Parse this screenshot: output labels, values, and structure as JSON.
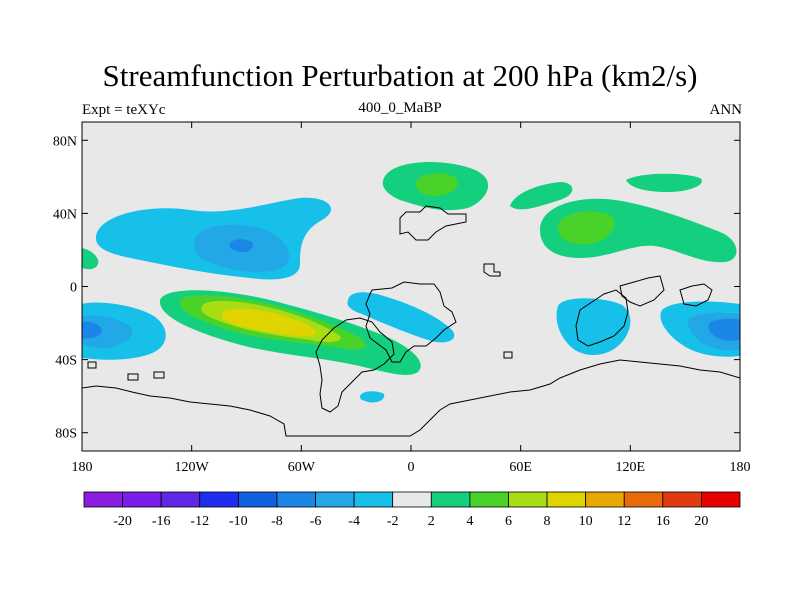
{
  "chart_data": {
    "type": "heatmap",
    "title": "Streamfunction Perturbation at 200 hPa (km2/s)",
    "left_label": "Expt = teXYc",
    "center_label": "400_0_MaBP",
    "right_label": "ANN",
    "xlim": [
      -180,
      180
    ],
    "ylim": [
      -90,
      90
    ],
    "x_ticks": [
      {
        "value": -180,
        "label": "180"
      },
      {
        "value": -120,
        "label": "120W"
      },
      {
        "value": -60,
        "label": "60W"
      },
      {
        "value": 0,
        "label": "0"
      },
      {
        "value": 60,
        "label": "60E"
      },
      {
        "value": 120,
        "label": "120E"
      },
      {
        "value": 180,
        "label": "180"
      }
    ],
    "y_ticks": [
      {
        "value": 80,
        "label": "80N"
      },
      {
        "value": 40,
        "label": "40N"
      },
      {
        "value": 0,
        "label": "0"
      },
      {
        "value": -40,
        "label": "40S"
      },
      {
        "value": -80,
        "label": "80S"
      }
    ],
    "colorbar": {
      "labels": [
        "-20",
        "-16",
        "-12",
        "-10",
        "-8",
        "-6",
        "-4",
        "-2",
        "2",
        "4",
        "6",
        "8",
        "10",
        "12",
        "16",
        "20"
      ],
      "colors": [
        "#8a1fe0",
        "#7a1ee8",
        "#5f28e6",
        "#1e2df0",
        "#1060e0",
        "#1c86e6",
        "#22a8e6",
        "#16c0e8",
        "#e8e8e8",
        "#14d07e",
        "#48d22a",
        "#a8dc14",
        "#e0d400",
        "#e8a800",
        "#e86a08",
        "#e03a10",
        "#e80000"
      ],
      "position": "bottom"
    },
    "background_color": "#e8e8e8",
    "features": [
      {
        "name": "Southern Atlantic positive anomaly",
        "value": 10,
        "lon": -75,
        "lat": -22
      },
      {
        "name": "Northern Pacific negative anomaly",
        "value": -8,
        "lon": -95,
        "lat": 25
      },
      {
        "name": "Southern Pacific negative anomaly",
        "value": -8,
        "lon": -178,
        "lat": -24
      },
      {
        "name": "Western Pacific negative anomaly",
        "value": -8,
        "lon": 165,
        "lat": -24
      },
      {
        "name": "East Asia positive anomaly",
        "value": 6,
        "lon": 95,
        "lat": 32
      },
      {
        "name": "Europe positive anomaly",
        "value": 6,
        "lon": 13,
        "lat": 60
      },
      {
        "name": "Indian Ocean negative anomaly",
        "value": -4,
        "lon": 90,
        "lat": -30
      },
      {
        "name": "Atlantic negative anomaly",
        "value": -4,
        "lon": 0,
        "lat": -25
      }
    ]
  }
}
